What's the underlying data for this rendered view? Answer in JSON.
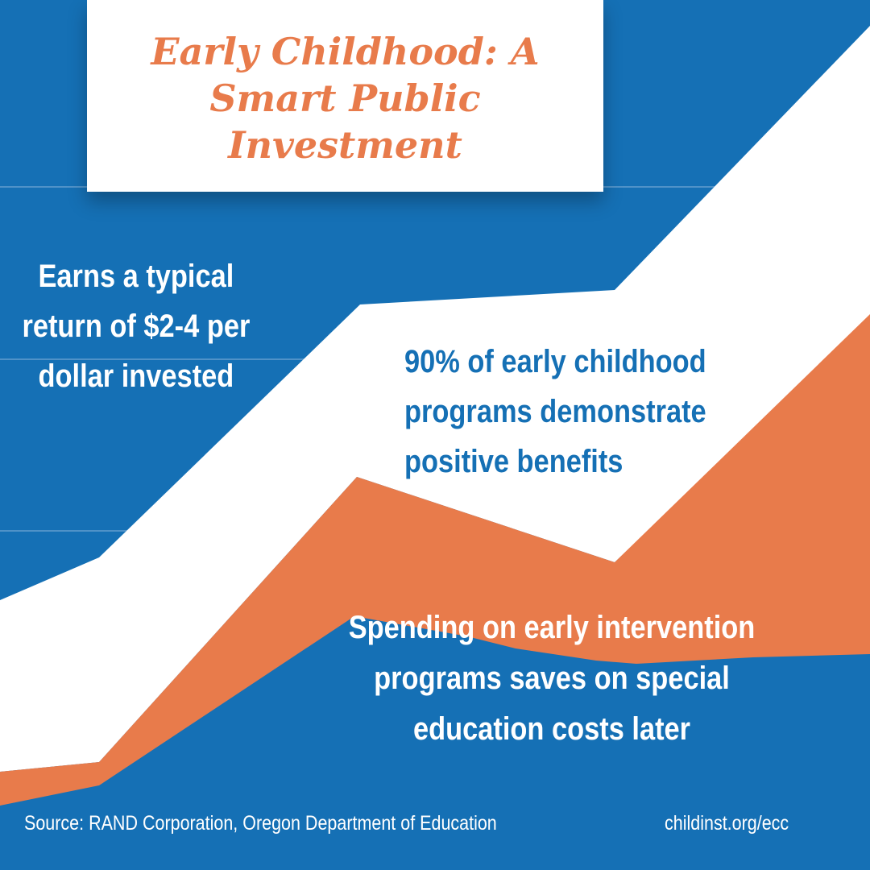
{
  "colors": {
    "background_blue": "#1570b5",
    "accent_orange": "#e87b4b",
    "white": "#ffffff",
    "gridline": "#4f92c8"
  },
  "title": "Early Childhood: A Smart Public Investment",
  "stats": {
    "return": "Earns a typical return of $2-4 per dollar invested",
    "benefits": "90% of early childhood programs demonstrate positive benefits",
    "savings": "Spending on early intervention programs saves on special education costs later"
  },
  "footer": {
    "source": "Source: RAND Corporation, Oregon Department of Education",
    "url": "childinst.org/ecc"
  }
}
